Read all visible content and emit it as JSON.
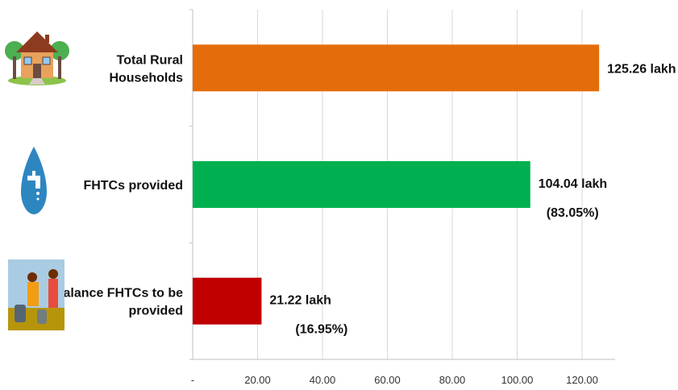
{
  "chart_data": {
    "type": "bar",
    "orientation": "horizontal",
    "categories": [
      {
        "lines": [
          "Total Rural",
          "Households"
        ],
        "icon": "house-icon"
      },
      {
        "lines": [
          "FHTCs provided"
        ],
        "icon": "water-tap-drop-icon"
      },
      {
        "lines": [
          "Balance FHTCs to be",
          "provided"
        ],
        "icon": "women-carrying-water-icon"
      }
    ],
    "values": [
      125.26,
      104.04,
      21.22
    ],
    "value_labels": [
      [
        "125.26 lakh"
      ],
      [
        "104.04  lakh",
        "(83.05%)"
      ],
      [
        "21.22  lakh",
        "(16.95%)"
      ]
    ],
    "colors": [
      "#E46C0A",
      "#00B050",
      "#C00000"
    ],
    "xticks": [
      "-",
      "20.00",
      "40.00",
      "60.00",
      "80.00",
      "100.00",
      "120.00"
    ],
    "xtick_values": [
      0,
      20,
      40,
      60,
      80,
      100,
      120
    ],
    "xlim": [
      0,
      130
    ],
    "grid": "vertical",
    "title": "",
    "xlabel": "",
    "ylabel": ""
  }
}
